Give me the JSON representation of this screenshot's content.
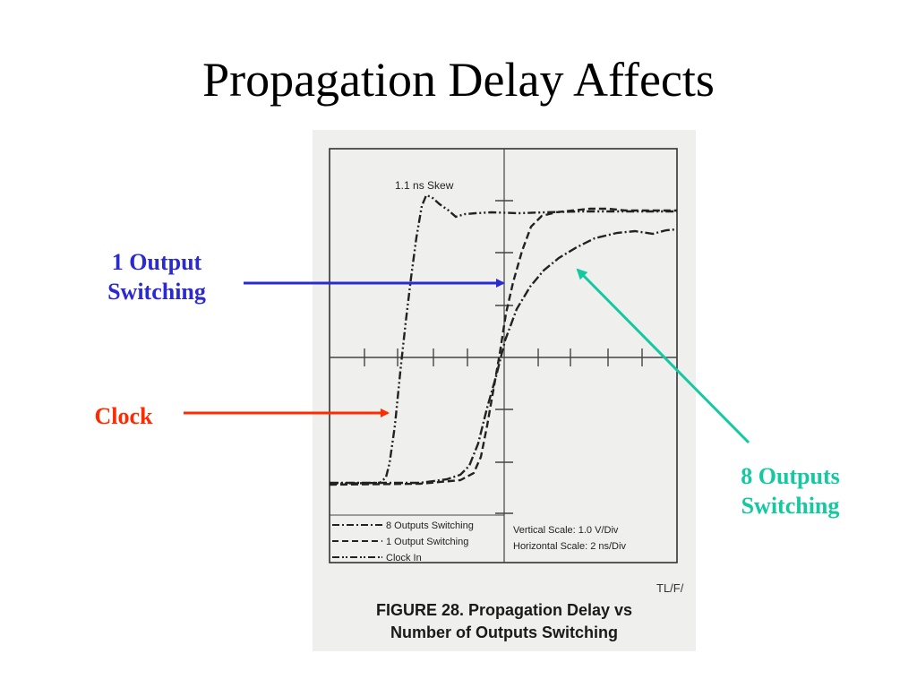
{
  "slide": {
    "title": "Propagation Delay Affects"
  },
  "figure": {
    "skew_label": "1.1 ns Skew",
    "legend": [
      {
        "label": "8 Outputs Switching",
        "style": "dash-dot"
      },
      {
        "label": "1 Output Switching",
        "style": "dashed"
      },
      {
        "label": "Clock In",
        "style": "dash-dot-dot"
      }
    ],
    "scale": {
      "vertical": "Vertical Scale: 1.0 V/Div",
      "horizontal": "Horizontal Scale: 2 ns/Div"
    },
    "code": "TL/F/",
    "caption_line1": "FIGURE 28. Propagation Delay vs",
    "caption_line2": "Number of Outputs Switching"
  },
  "annotations": {
    "one_output": {
      "line1": "1 Output",
      "line2": "Switching",
      "color": "#2a2ad0"
    },
    "clock": {
      "label": "Clock",
      "color": "#ff2a00"
    },
    "eight_outputs": {
      "line1": "8 Outputs",
      "line2": "Switching",
      "color": "#14c8a0"
    }
  }
}
